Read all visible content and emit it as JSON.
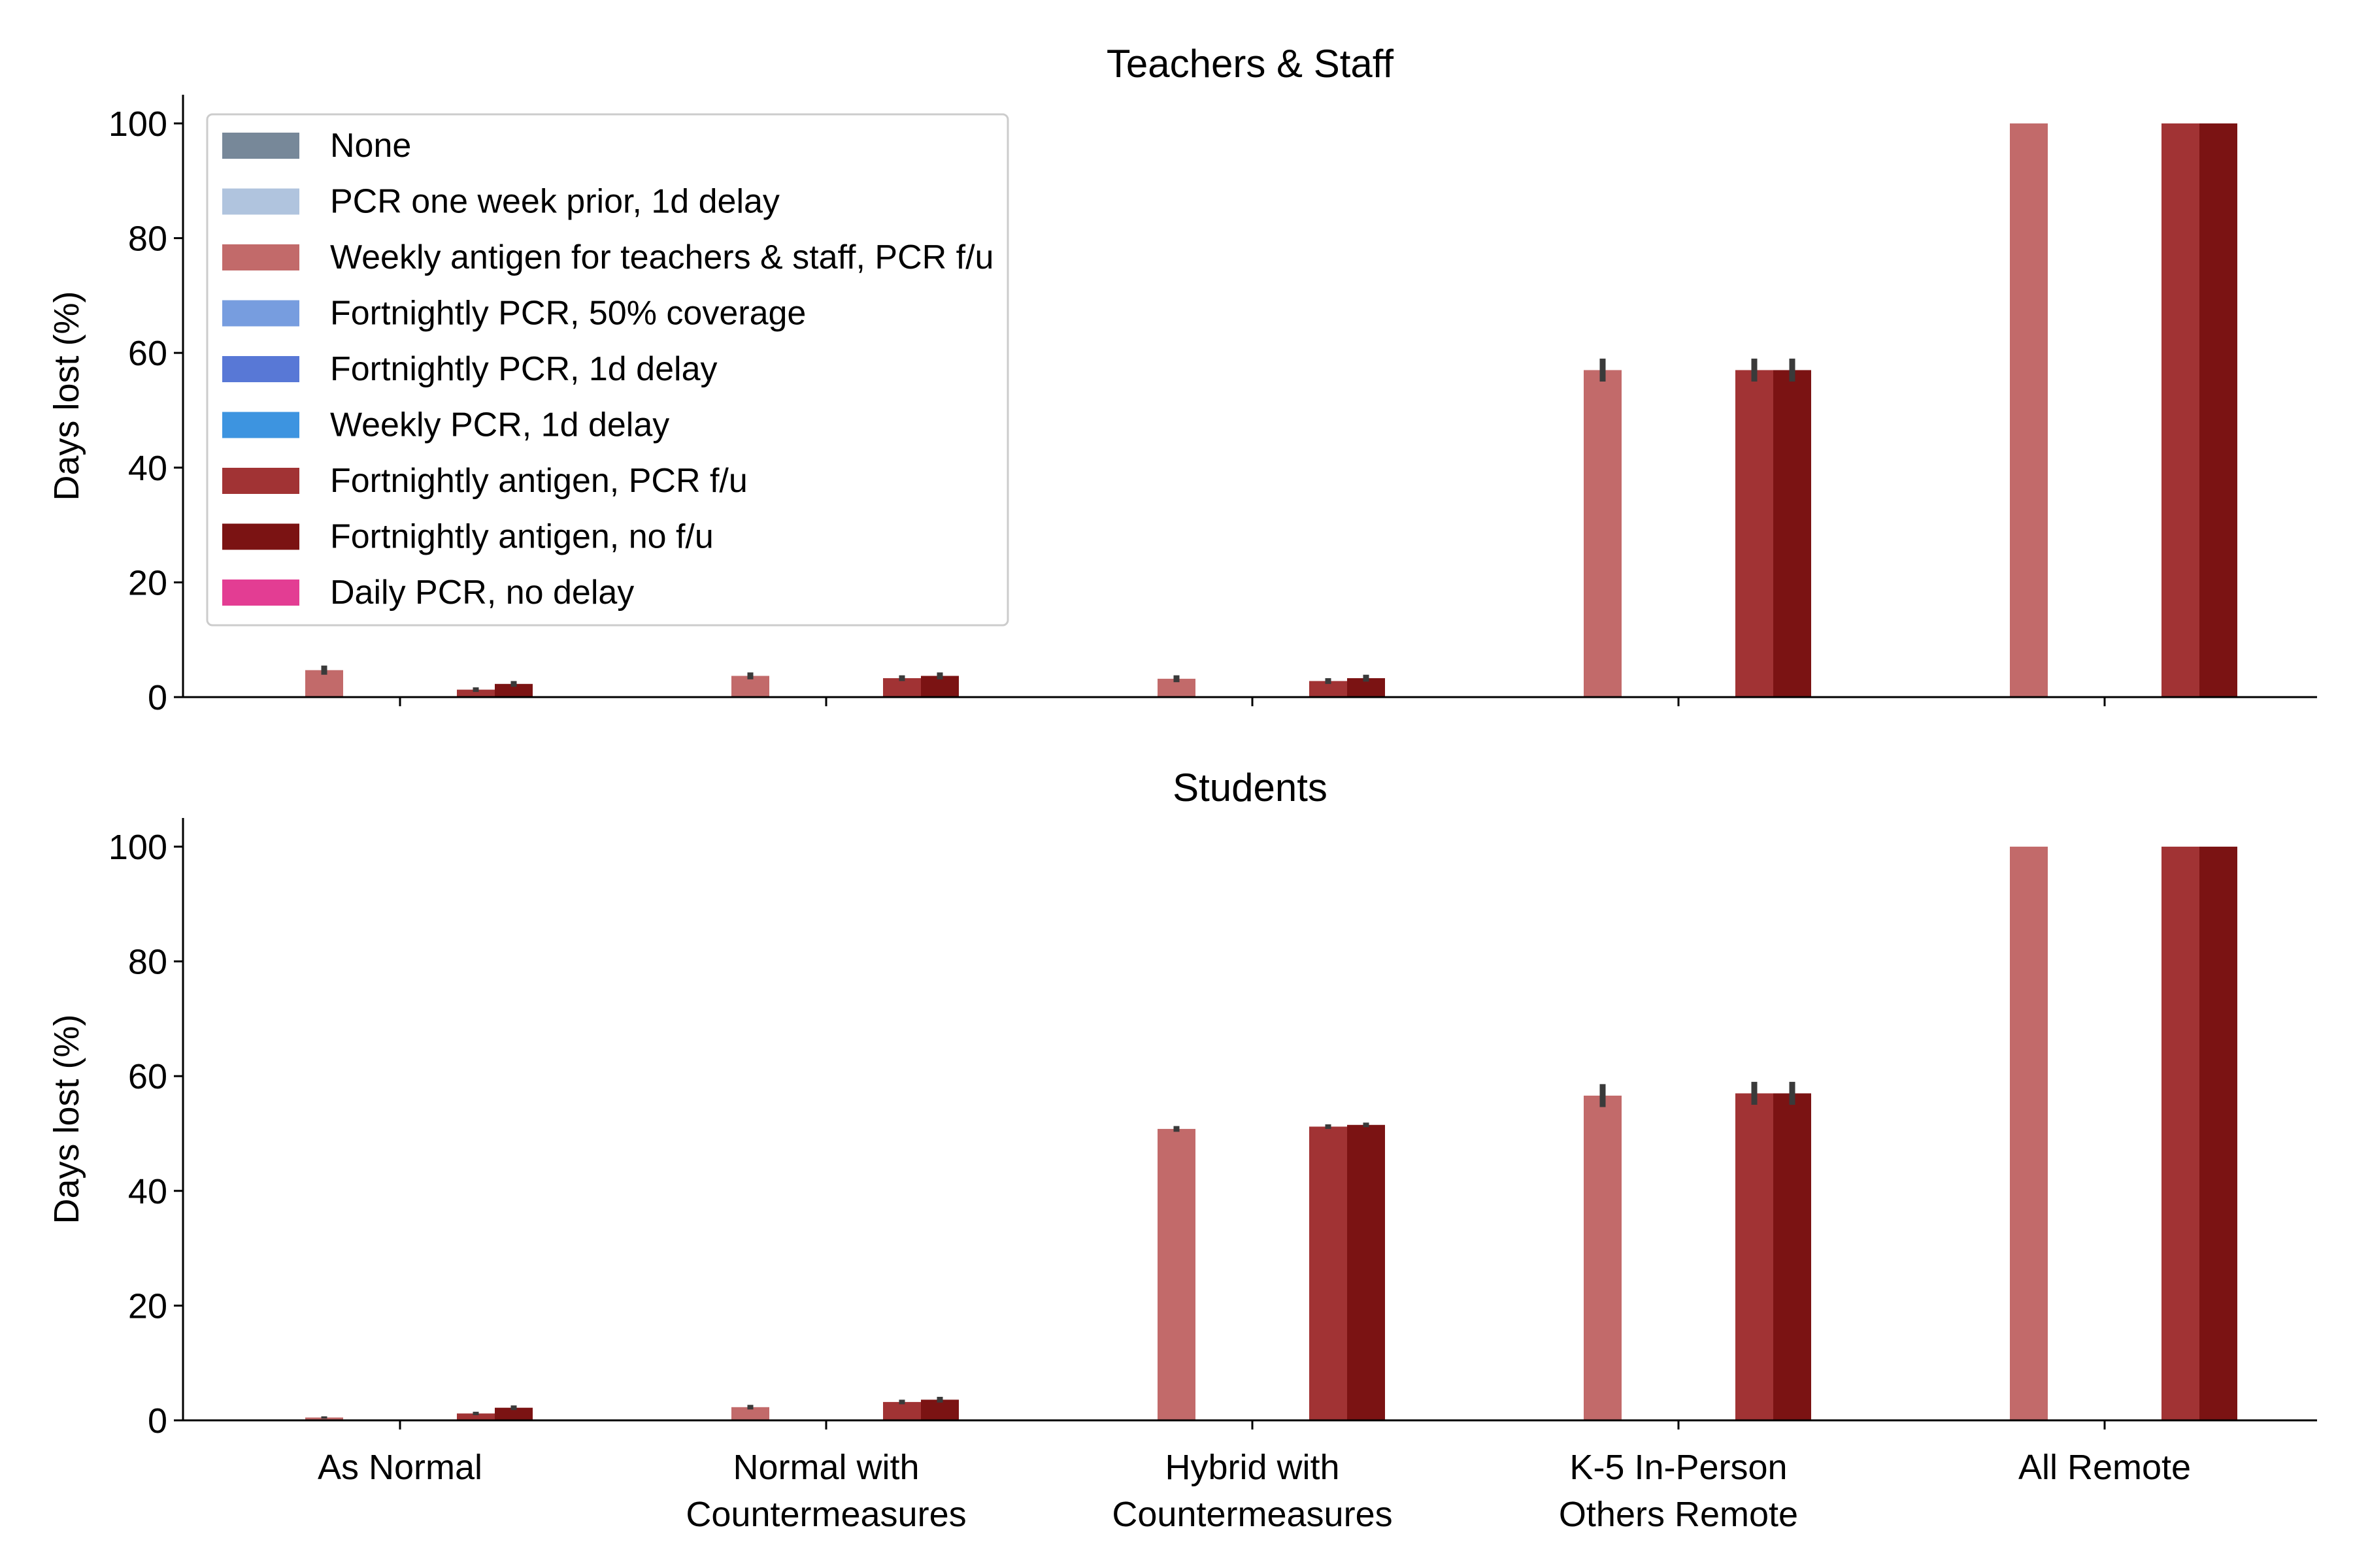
{
  "chart_data": [
    {
      "type": "bar",
      "title": "Teachers & Staff",
      "ylabel": "Days lost (%)",
      "xlabel": "",
      "ylim": [
        0,
        105
      ],
      "yticks": [
        0,
        20,
        40,
        60,
        80,
        100
      ],
      "categories": [
        "As Normal",
        "Normal with Countermeasures",
        "Hybrid with Countermeasures",
        "K-5 In-Person Others Remote",
        "All Remote"
      ],
      "grid": false,
      "legend_position": "top-left",
      "series": [
        {
          "name": "None",
          "color": "#778899",
          "values": [
            0,
            0,
            0,
            0,
            0
          ],
          "errors": [
            0,
            0,
            0,
            0,
            0
          ]
        },
        {
          "name": "PCR one week prior, 1d delay",
          "color": "#b0c4de",
          "values": [
            0,
            0,
            0,
            0,
            0
          ],
          "errors": [
            0,
            0,
            0,
            0,
            0
          ]
        },
        {
          "name": "Weekly antigen for teachers & staff, PCR f/u",
          "color": "#c26a6a",
          "values": [
            4.7,
            3.7,
            3.2,
            57,
            100
          ],
          "errors": [
            0.8,
            0.6,
            0.6,
            2.0,
            0
          ]
        },
        {
          "name": "Fortnightly PCR, 50% coverage",
          "color": "#779ddf",
          "values": [
            0,
            0,
            0,
            0,
            0
          ],
          "errors": [
            0,
            0,
            0,
            0,
            0
          ]
        },
        {
          "name": "Fortnightly PCR, 1d delay",
          "color": "#5878d6",
          "values": [
            0,
            0,
            0,
            0,
            0
          ],
          "errors": [
            0,
            0,
            0,
            0,
            0
          ]
        },
        {
          "name": "Weekly PCR, 1d delay",
          "color": "#3d94e0",
          "values": [
            0,
            0,
            0,
            0,
            0
          ],
          "errors": [
            0,
            0,
            0,
            0,
            0
          ]
        },
        {
          "name": "Fortnightly antigen, PCR f/u",
          "color": "#a13334",
          "values": [
            1.3,
            3.3,
            2.8,
            57,
            100
          ],
          "errors": [
            0.4,
            0.5,
            0.5,
            2.0,
            0
          ]
        },
        {
          "name": "Fortnightly antigen, no f/u",
          "color": "#7b1313",
          "values": [
            2.3,
            3.7,
            3.3,
            57,
            100
          ],
          "errors": [
            0.5,
            0.6,
            0.6,
            2.0,
            0
          ]
        },
        {
          "name": "Daily PCR, no delay",
          "color": "#e33d93",
          "values": [
            0,
            0,
            0,
            0,
            0
          ],
          "errors": [
            0,
            0,
            0,
            0,
            0
          ]
        }
      ]
    },
    {
      "type": "bar",
      "title": "Students",
      "ylabel": "Days lost (%)",
      "xlabel": "",
      "ylim": [
        0,
        105
      ],
      "yticks": [
        0,
        20,
        40,
        60,
        80,
        100
      ],
      "categories": [
        "As Normal",
        "Normal with Countermeasures",
        "Hybrid with Countermeasures",
        "K-5 In-Person Others Remote",
        "All Remote"
      ],
      "grid": false,
      "series": [
        {
          "name": "None",
          "color": "#778899",
          "values": [
            0,
            0,
            0,
            0,
            0
          ],
          "errors": [
            0,
            0,
            0,
            0,
            0
          ]
        },
        {
          "name": "PCR one week prior, 1d delay",
          "color": "#b0c4de",
          "values": [
            0,
            0,
            0,
            0,
            0
          ],
          "errors": [
            0,
            0,
            0,
            0,
            0
          ]
        },
        {
          "name": "Weekly antigen for teachers & staff, PCR f/u",
          "color": "#c26a6a",
          "values": [
            0.5,
            2.3,
            50.8,
            56.6,
            100
          ],
          "errors": [
            0.2,
            0.4,
            0.5,
            2.0,
            0
          ]
        },
        {
          "name": "Fortnightly PCR, 50% coverage",
          "color": "#779ddf",
          "values": [
            0,
            0,
            0,
            0,
            0
          ],
          "errors": [
            0,
            0,
            0,
            0,
            0
          ]
        },
        {
          "name": "Fortnightly PCR, 1d delay",
          "color": "#5878d6",
          "values": [
            0,
            0,
            0,
            0,
            0
          ],
          "errors": [
            0,
            0,
            0,
            0,
            0
          ]
        },
        {
          "name": "Weekly PCR, 1d delay",
          "color": "#3d94e0",
          "values": [
            0,
            0,
            0,
            0,
            0
          ],
          "errors": [
            0,
            0,
            0,
            0,
            0
          ]
        },
        {
          "name": "Fortnightly antigen, PCR f/u",
          "color": "#a13334",
          "values": [
            1.2,
            3.2,
            51.2,
            57,
            100
          ],
          "errors": [
            0.3,
            0.4,
            0.4,
            2.0,
            0
          ]
        },
        {
          "name": "Fortnightly antigen, no f/u",
          "color": "#7b1313",
          "values": [
            2.2,
            3.6,
            51.5,
            57,
            100
          ],
          "errors": [
            0.4,
            0.5,
            0.4,
            2.0,
            0
          ]
        },
        {
          "name": "Daily PCR, no delay",
          "color": "#e33d93",
          "values": [
            0,
            0,
            0,
            0,
            0
          ],
          "errors": [
            0,
            0,
            0,
            0,
            0
          ]
        }
      ]
    }
  ],
  "x_tick_labels": [
    [
      "As Normal"
    ],
    [
      "Normal with",
      "Countermeasures"
    ],
    [
      "Hybrid with",
      "Countermeasures"
    ],
    [
      "K-5 In-Person",
      "Others Remote"
    ],
    [
      "All Remote"
    ]
  ]
}
